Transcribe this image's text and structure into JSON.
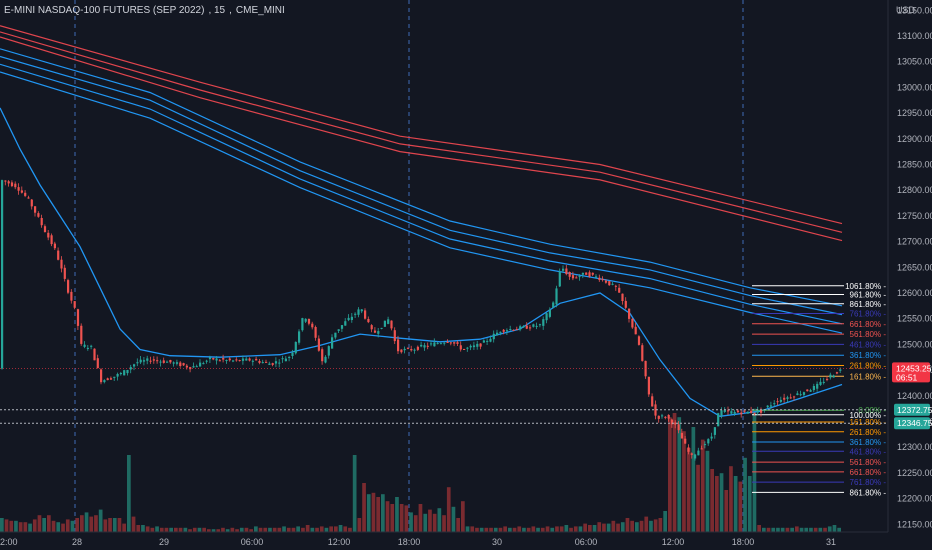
{
  "header": {
    "symbol": "E-MINI NASDAQ-100 FUTURES (SEP 2022)",
    "interval": "15",
    "exchange": "CME_MINI",
    "currency": "USD"
  },
  "price_axis": {
    "ticks": [
      "13150.00",
      "13100.00",
      "13050.00",
      "13000.00",
      "12950.00",
      "12900.00",
      "12850.00",
      "12800.00",
      "12750.00",
      "12700.00",
      "12650.00",
      "12600.00",
      "12550.00",
      "12500.00",
      "12450.00",
      "12400.00",
      "12350.00",
      "12300.00",
      "12250.00",
      "12200.00",
      "12150.00"
    ],
    "last_price": "12453.25",
    "countdown": "06:51",
    "level_a": "12372.75",
    "level_b": "12346.75",
    "last_price_color": "#f23645",
    "level_a_color": "#26a69a",
    "level_b_color": "#26a69a"
  },
  "time_axis": {
    "ticks": [
      "2:00",
      "28",
      "29",
      "06:00",
      "12:00",
      "18:00",
      "30",
      "06:00",
      "12:00",
      "18:00",
      "31"
    ]
  },
  "fib_labels": [
    {
      "label": "1061.80%",
      "value": 12614,
      "color": "#ffffff"
    },
    {
      "label": "961.80%",
      "value": 12597,
      "color": "#ffffff"
    },
    {
      "label": "861.80%",
      "value": 12579,
      "color": "#ffffff"
    },
    {
      "label": "761.80%",
      "value": 12560,
      "color": "#3a3ab8"
    },
    {
      "label": "661.80%",
      "value": 12540,
      "color": "#ef5350"
    },
    {
      "label": "561.80%",
      "value": 12520,
      "color": "#ef5350"
    },
    {
      "label": "461.80%",
      "value": 12500,
      "color": "#3a3ab8"
    },
    {
      "label": "361.80%",
      "value": 12479,
      "color": "#2196f3"
    },
    {
      "label": "261.80%",
      "value": 12459,
      "color": "#ff9800"
    },
    {
      "label": "161.80%",
      "value": 12438,
      "color": "#ffb74d"
    },
    {
      "label": "0.00%",
      "value": 12372,
      "color": "#4caf50"
    },
    {
      "label": "100.00%",
      "value": 12363,
      "color": "#ffffff"
    },
    {
      "label": "161.80%",
      "value": 12349,
      "color": "#ff9800"
    },
    {
      "label": "261.80%",
      "value": 12330,
      "color": "#ff9800"
    },
    {
      "label": "361.80%",
      "value": 12310,
      "color": "#2196f3"
    },
    {
      "label": "461.80%",
      "value": 12292,
      "color": "#3a3ab8"
    },
    {
      "label": "561.80%",
      "value": 12271,
      "color": "#ef5350"
    },
    {
      "label": "661.80%",
      "value": 12252,
      "color": "#ef5350"
    },
    {
      "label": "761.80%",
      "value": 12232,
      "color": "#3a3ab8"
    },
    {
      "label": "861.80%",
      "value": 12212,
      "color": "#ffffff"
    }
  ],
  "chart_data": {
    "type": "candlestick",
    "title": "E-MINI NASDAQ-100 FUTURES (SEP 2022), 15, CME_MINI",
    "y_range": [
      12135,
      13170
    ],
    "grid": false,
    "session_dividers": [
      "28",
      "18:00",
      "18:00"
    ],
    "price_path": [
      {
        "x": 0,
        "p": 12820
      },
      {
        "x": 15,
        "p": 12808
      },
      {
        "x": 28,
        "p": 12780
      },
      {
        "x": 40,
        "p": 12735
      },
      {
        "x": 55,
        "p": 12680
      },
      {
        "x": 66,
        "p": 12610
      },
      {
        "x": 75,
        "p": 12560
      },
      {
        "x": 80,
        "p": 12498
      },
      {
        "x": 90,
        "p": 12495
      },
      {
        "x": 100,
        "p": 12430
      },
      {
        "x": 110,
        "p": 12435
      },
      {
        "x": 122,
        "p": 12445
      },
      {
        "x": 135,
        "p": 12465
      },
      {
        "x": 150,
        "p": 12470
      },
      {
        "x": 170,
        "p": 12465
      },
      {
        "x": 190,
        "p": 12455
      },
      {
        "x": 210,
        "p": 12472
      },
      {
        "x": 230,
        "p": 12468
      },
      {
        "x": 250,
        "p": 12470
      },
      {
        "x": 270,
        "p": 12462
      },
      {
        "x": 290,
        "p": 12478
      },
      {
        "x": 303,
        "p": 12558
      },
      {
        "x": 312,
        "p": 12528
      },
      {
        "x": 322,
        "p": 12462
      },
      {
        "x": 332,
        "p": 12520
      },
      {
        "x": 345,
        "p": 12545
      },
      {
        "x": 360,
        "p": 12570
      },
      {
        "x": 372,
        "p": 12520
      },
      {
        "x": 388,
        "p": 12550
      },
      {
        "x": 396,
        "p": 12488
      },
      {
        "x": 410,
        "p": 12490
      },
      {
        "x": 430,
        "p": 12500
      },
      {
        "x": 448,
        "p": 12508
      },
      {
        "x": 462,
        "p": 12490
      },
      {
        "x": 480,
        "p": 12500
      },
      {
        "x": 500,
        "p": 12528
      },
      {
        "x": 520,
        "p": 12532
      },
      {
        "x": 540,
        "p": 12538
      },
      {
        "x": 552,
        "p": 12580
      },
      {
        "x": 560,
        "p": 12652
      },
      {
        "x": 570,
        "p": 12628
      },
      {
        "x": 585,
        "p": 12638
      },
      {
        "x": 600,
        "p": 12628
      },
      {
        "x": 615,
        "p": 12610
      },
      {
        "x": 625,
        "p": 12568
      },
      {
        "x": 638,
        "p": 12498
      },
      {
        "x": 648,
        "p": 12400
      },
      {
        "x": 655,
        "p": 12358
      },
      {
        "x": 665,
        "p": 12360
      },
      {
        "x": 675,
        "p": 12340
      },
      {
        "x": 690,
        "p": 12280
      },
      {
        "x": 700,
        "p": 12300
      },
      {
        "x": 710,
        "p": 12318
      },
      {
        "x": 718,
        "p": 12370
      },
      {
        "x": 730,
        "p": 12368
      },
      {
        "x": 745,
        "p": 12368
      },
      {
        "x": 760,
        "p": 12370
      },
      {
        "x": 775,
        "p": 12390
      },
      {
        "x": 795,
        "p": 12402
      },
      {
        "x": 815,
        "p": 12418
      },
      {
        "x": 830,
        "p": 12440
      },
      {
        "x": 842,
        "p": 12453
      }
    ],
    "volume_heights": [
      0.1,
      0.09,
      0.08,
      0.08,
      0.07,
      0.07,
      0.06,
      0.09,
      0.12,
      0.1,
      0.12,
      0.08,
      0.07,
      0.06,
      0.09,
      0.08,
      0.1,
      0.12,
      0.14,
      0.11,
      0.12,
      0.16,
      0.09,
      0.1,
      0.1,
      0.1,
      0.06,
      0.55,
      0.11,
      0.05,
      0.05,
      0.04,
      0.03,
      0.04,
      0.03,
      0.03,
      0.03,
      0.03,
      0.03,
      0.03,
      0.02,
      0.03,
      0.03,
      0.03,
      0.02,
      0.02,
      0.02,
      0.03,
      0.02,
      0.03,
      0.02,
      0.03,
      0.03,
      0.02,
      0.04,
      0.03,
      0.03,
      0.03,
      0.03,
      0.03,
      0.04,
      0.03,
      0.03,
      0.04,
      0.03,
      0.05,
      0.03,
      0.03,
      0.04,
      0.03,
      0.04,
      0.04,
      0.05,
      0.04,
      0.03,
      0.55,
      0.1,
      0.35,
      0.27,
      0.28,
      0.25,
      0.27,
      0.22,
      0.2,
      0.25,
      0.2,
      0.19,
      0.14,
      0.12,
      0.2,
      0.13,
      0.16,
      0.13,
      0.17,
      0.12,
      0.32,
      0.18,
      0.1,
      0.22,
      0.04,
      0.04,
      0.03,
      0.03,
      0.03,
      0.03,
      0.03,
      0.03,
      0.04,
      0.03,
      0.03,
      0.04,
      0.03,
      0.03,
      0.04,
      0.03,
      0.03,
      0.04,
      0.03,
      0.04,
      0.04,
      0.05,
      0.03,
      0.04,
      0.04,
      0.06,
      0.05,
      0.05,
      0.07,
      0.06,
      0.06,
      0.08,
      0.06,
      0.07,
      0.1,
      0.08,
      0.07,
      0.08,
      0.11,
      0.08,
      0.09,
      0.1,
      0.15,
      0.82,
      0.85,
      0.82,
      0.72,
      0.6,
      0.75,
      0.48,
      0.66,
      0.58,
      0.45,
      0.4,
      0.42,
      0.3,
      0.47,
      0.4,
      0.36,
      0.53,
      0.4,
      0.88,
      0.05,
      0.03,
      0.03,
      0.03,
      0.03,
      0.03,
      0.03,
      0.03,
      0.04,
      0.03,
      0.03,
      0.03,
      0.03,
      0.03,
      0.03,
      0.04,
      0.05,
      0.03
    ],
    "ma_blue": [
      {
        "x": 0,
        "p": 12960
      },
      {
        "x": 20,
        "p": 12880
      },
      {
        "x": 40,
        "p": 12810
      },
      {
        "x": 60,
        "p": 12750
      },
      {
        "x": 80,
        "p": 12690
      },
      {
        "x": 100,
        "p": 12610
      },
      {
        "x": 120,
        "p": 12530
      },
      {
        "x": 140,
        "p": 12490
      },
      {
        "x": 170,
        "p": 12478
      },
      {
        "x": 220,
        "p": 12475
      },
      {
        "x": 280,
        "p": 12480
      },
      {
        "x": 320,
        "p": 12498
      },
      {
        "x": 360,
        "p": 12520
      },
      {
        "x": 400,
        "p": 12512
      },
      {
        "x": 440,
        "p": 12505
      },
      {
        "x": 480,
        "p": 12510
      },
      {
        "x": 520,
        "p": 12530
      },
      {
        "x": 560,
        "p": 12580
      },
      {
        "x": 600,
        "p": 12600
      },
      {
        "x": 630,
        "p": 12560
      },
      {
        "x": 660,
        "p": 12470
      },
      {
        "x": 690,
        "p": 12395
      },
      {
        "x": 720,
        "p": 12360
      },
      {
        "x": 760,
        "p": 12370
      },
      {
        "x": 800,
        "p": 12395
      },
      {
        "x": 842,
        "p": 12422
      }
    ],
    "ribbon_red": [
      [
        {
          "x": 0,
          "p": 13120
        },
        {
          "x": 200,
          "p": 13010
        },
        {
          "x": 400,
          "p": 12905
        },
        {
          "x": 600,
          "p": 12850
        },
        {
          "x": 842,
          "p": 12735
        }
      ],
      [
        {
          "x": 0,
          "p": 13108
        },
        {
          "x": 200,
          "p": 12995
        },
        {
          "x": 400,
          "p": 12890
        },
        {
          "x": 600,
          "p": 12835
        },
        {
          "x": 842,
          "p": 12718
        }
      ],
      [
        {
          "x": 0,
          "p": 13098
        },
        {
          "x": 200,
          "p": 12980
        },
        {
          "x": 400,
          "p": 12875
        },
        {
          "x": 600,
          "p": 12820
        },
        {
          "x": 842,
          "p": 12702
        }
      ]
    ],
    "ribbon_blue": [
      [
        {
          "x": 0,
          "p": 13075
        },
        {
          "x": 150,
          "p": 12990
        },
        {
          "x": 300,
          "p": 12855
        },
        {
          "x": 450,
          "p": 12740
        },
        {
          "x": 550,
          "p": 12695
        },
        {
          "x": 650,
          "p": 12660
        },
        {
          "x": 750,
          "p": 12610
        },
        {
          "x": 842,
          "p": 12575
        }
      ],
      [
        {
          "x": 0,
          "p": 13060
        },
        {
          "x": 150,
          "p": 12975
        },
        {
          "x": 300,
          "p": 12838
        },
        {
          "x": 450,
          "p": 12722
        },
        {
          "x": 550,
          "p": 12678
        },
        {
          "x": 650,
          "p": 12645
        },
        {
          "x": 750,
          "p": 12595
        },
        {
          "x": 842,
          "p": 12558
        }
      ],
      [
        {
          "x": 0,
          "p": 13045
        },
        {
          "x": 150,
          "p": 12958
        },
        {
          "x": 300,
          "p": 12822
        },
        {
          "x": 450,
          "p": 12705
        },
        {
          "x": 550,
          "p": 12662
        },
        {
          "x": 650,
          "p": 12628
        },
        {
          "x": 750,
          "p": 12578
        },
        {
          "x": 842,
          "p": 12540
        }
      ],
      [
        {
          "x": 0,
          "p": 13030
        },
        {
          "x": 150,
          "p": 12940
        },
        {
          "x": 300,
          "p": 12805
        },
        {
          "x": 450,
          "p": 12688
        },
        {
          "x": 550,
          "p": 12645
        },
        {
          "x": 650,
          "p": 12610
        },
        {
          "x": 750,
          "p": 12562
        },
        {
          "x": 842,
          "p": 12522
        }
      ]
    ]
  }
}
